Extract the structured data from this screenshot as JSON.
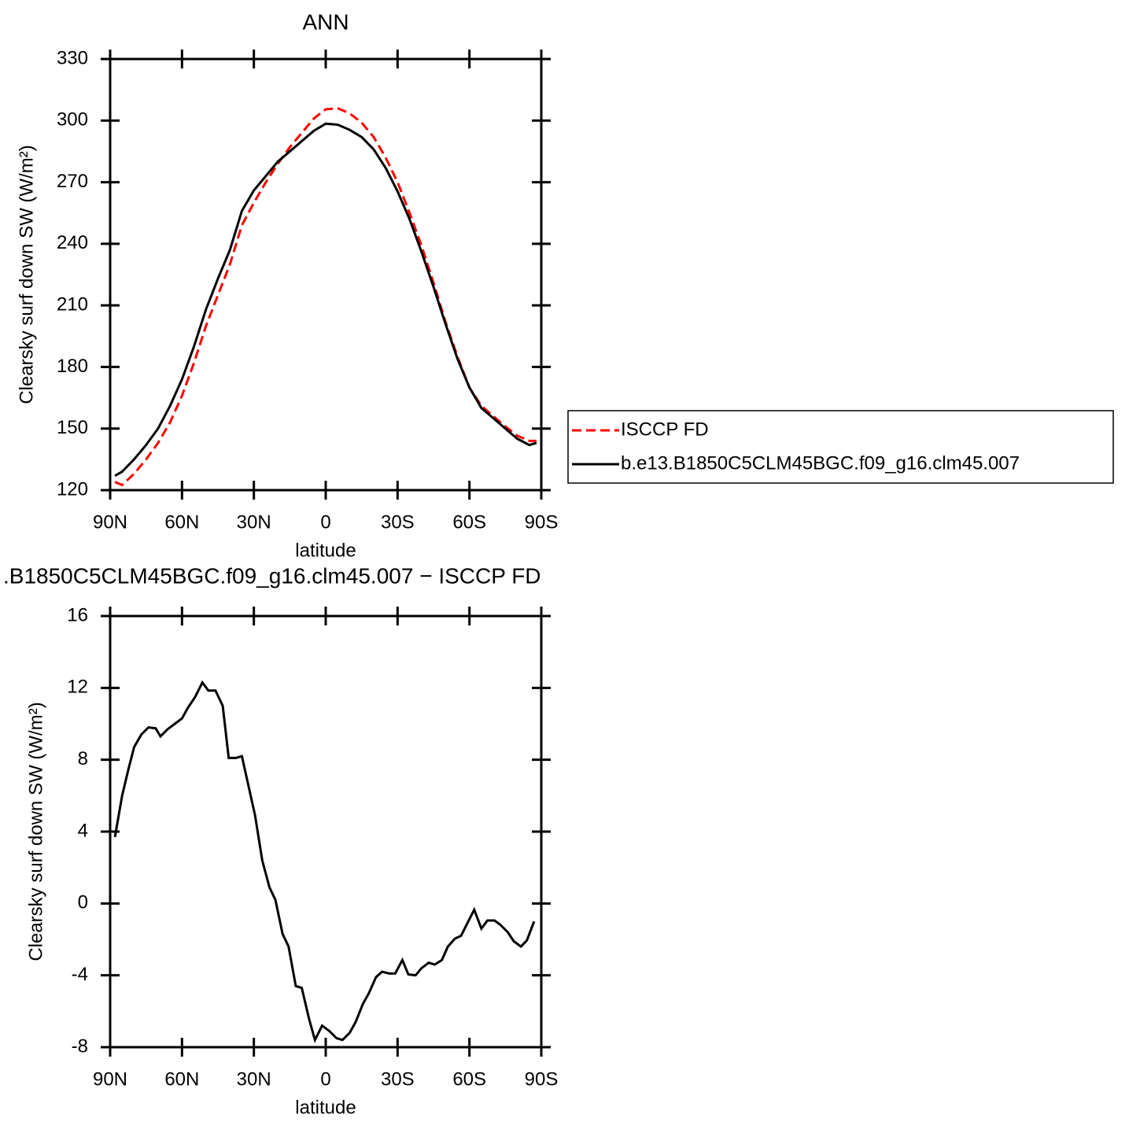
{
  "chart_data": [
    {
      "type": "line",
      "title": "ANN",
      "xlabel": "latitude",
      "ylabel": "Clearsky surf down SW (W/m²)",
      "x": [
        88,
        85,
        80,
        75,
        70,
        65,
        60,
        55,
        50,
        45,
        40,
        35,
        30,
        25,
        20,
        15,
        10,
        5,
        0,
        -5,
        -10,
        -15,
        -20,
        -25,
        -30,
        -35,
        -40,
        -45,
        -50,
        -55,
        -60,
        -65,
        -70,
        -75,
        -80,
        -85,
        -88
      ],
      "series": [
        {
          "name": "ISCCP FD",
          "color": "#ff0000",
          "dashed": true,
          "values": [
            124,
            122.5,
            128,
            135,
            143,
            153,
            166,
            182,
            200,
            215,
            230,
            249,
            260,
            270,
            279,
            287,
            294,
            301,
            305.5,
            306,
            303.5,
            299,
            292,
            282,
            270,
            255,
            239,
            221,
            202,
            185,
            170,
            161,
            156,
            151,
            146.5,
            144,
            144
          ]
        },
        {
          "name": "b.e13.B1850C5CLM45BGC.f09_g16.clm45.007",
          "color": "#000000",
          "dashed": false,
          "values": [
            127,
            129,
            135,
            142,
            150,
            161,
            174,
            190,
            208,
            223,
            237,
            256,
            266,
            273,
            280,
            285,
            290,
            295,
            298.5,
            298,
            295.5,
            292,
            286,
            277,
            265.5,
            252,
            236,
            219,
            201,
            184,
            170,
            160,
            155,
            150,
            145,
            142,
            143
          ]
        }
      ],
      "xlim": [
        90,
        -90
      ],
      "xticks": [
        {
          "value": 90,
          "label": "90N"
        },
        {
          "value": 60,
          "label": "60N"
        },
        {
          "value": 30,
          "label": "30N"
        },
        0,
        {
          "value": -30,
          "label": "30S"
        },
        {
          "value": -60,
          "label": "60S"
        },
        {
          "value": -90,
          "label": "90S"
        }
      ],
      "ylim": [
        120,
        330
      ],
      "yticks": [
        120,
        150,
        180,
        210,
        240,
        270,
        300,
        330
      ],
      "legend": "right"
    },
    {
      "type": "line",
      "title": ".B1850C5CLM45BGC.f09_g16.clm45.007 − ISCCP FD",
      "xlabel": "latitude",
      "ylabel": "Clearsky surf down SW (W/m²)",
      "x": [
        88,
        85,
        82.5,
        80,
        77,
        74,
        71,
        69,
        66,
        63,
        60,
        57.5,
        54.5,
        51.5,
        49,
        46,
        43,
        40.5,
        37.5,
        35,
        32,
        29.5,
        26.5,
        23.5,
        21,
        18,
        15.5,
        12.5,
        10,
        7,
        4.5,
        1.5,
        -1.5,
        -4.5,
        -7,
        -10,
        -12.5,
        -15.5,
        -18,
        -21,
        -23.5,
        -26.5,
        -29,
        -32,
        -34.5,
        -37.5,
        -40,
        -43,
        -45.5,
        -48.5,
        -51,
        -54,
        -56.5,
        -59.5,
        -62,
        -65,
        -67.5,
        -70.5,
        -73,
        -76,
        -78.5,
        -81.5,
        -84,
        -87
      ],
      "series": [
        {
          "color": "#000000",
          "dashed": false,
          "values": [
            3.7,
            6,
            7.4,
            8.7,
            9.4,
            9.8,
            9.75,
            9.3,
            9.7,
            10.0,
            10.3,
            10.9,
            11.5,
            12.3,
            11.85,
            11.85,
            11.0,
            8.1,
            8.1,
            8.2,
            6.4,
            4.9,
            2.4,
            0.9,
            0.2,
            -1.7,
            -2.4,
            -4.6,
            -4.7,
            -6.4,
            -7.6,
            -6.8,
            -7.1,
            -7.5,
            -7.6,
            -7.2,
            -6.6,
            -5.6,
            -5.0,
            -4.1,
            -3.8,
            -3.9,
            -3.9,
            -3.15,
            -3.95,
            -4.0,
            -3.6,
            -3.3,
            -3.4,
            -3.15,
            -2.4,
            -1.95,
            -1.8,
            -1.0,
            -0.35,
            -1.4,
            -0.95,
            -0.95,
            -1.2,
            -1.6,
            -2.1,
            -2.4,
            -2.05,
            -1.0
          ]
        }
      ],
      "xlim": [
        90,
        -90
      ],
      "xticks": [
        {
          "value": 90,
          "label": "90N"
        },
        {
          "value": 60,
          "label": "60N"
        },
        {
          "value": 30,
          "label": "30N"
        },
        0,
        {
          "value": -30,
          "label": "30S"
        },
        {
          "value": -60,
          "label": "60S"
        },
        {
          "value": -90,
          "label": "90S"
        }
      ],
      "ylim": [
        -8,
        16
      ],
      "yticks": [
        -8,
        -4,
        0,
        4,
        8,
        12,
        16
      ]
    }
  ]
}
